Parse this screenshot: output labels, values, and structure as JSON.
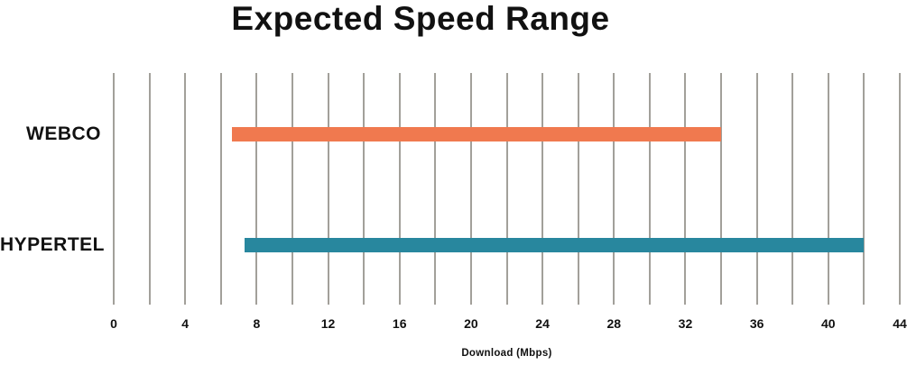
{
  "title": "Expected Speed Range",
  "chart_data": {
    "type": "bar",
    "orientation": "horizontal",
    "title": "Expected Speed Range",
    "xlabel": "Download (Mbps)",
    "xlim": [
      0,
      44
    ],
    "x_tick_step": 4,
    "gridline_step": 2,
    "grid": "vertical-only",
    "legend": "none",
    "categories": [
      "WEBCO",
      "HYPERTEL"
    ],
    "series": [
      {
        "name": "WEBCO",
        "range_mbps": [
          6.6,
          34
        ],
        "color": "#f0794f"
      },
      {
        "name": "HYPERTEL",
        "range_mbps": [
          7.3,
          42
        ],
        "color": "#28879e"
      }
    ],
    "x_tick_labels": [
      "0",
      "4",
      "8",
      "12",
      "16",
      "20",
      "24",
      "28",
      "32",
      "36",
      "40",
      "44"
    ],
    "gridline_color": "#a2a09a",
    "text_color": "#111111",
    "background": "#ffffff"
  }
}
